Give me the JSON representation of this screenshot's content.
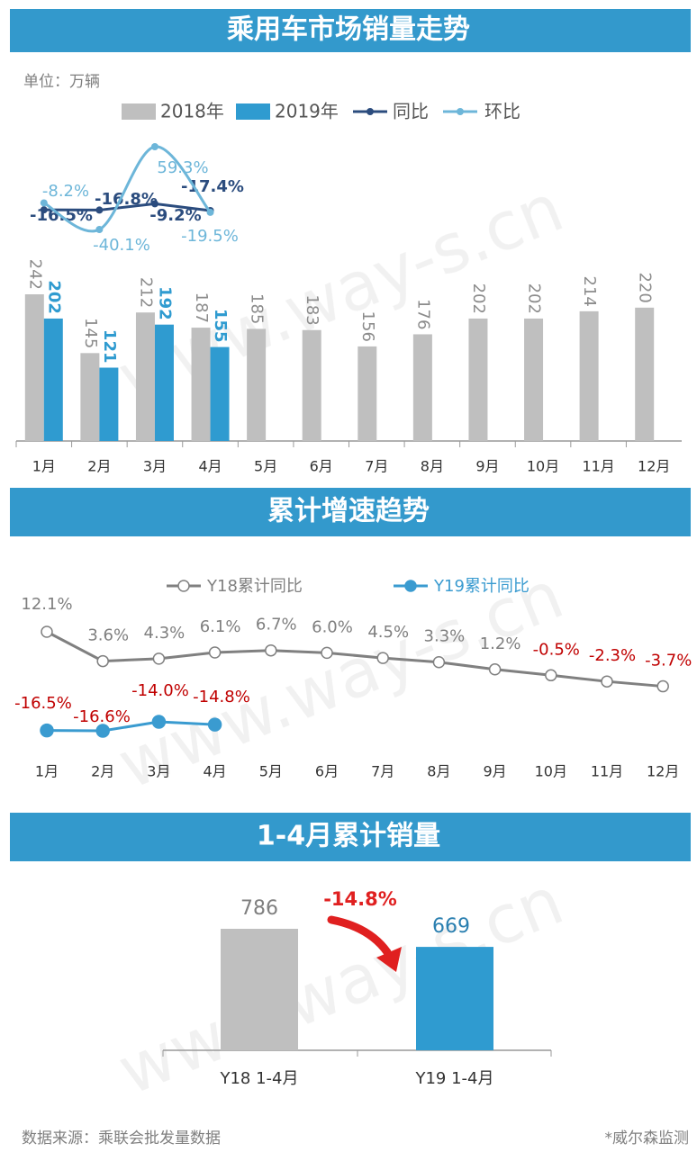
{
  "watermark": "www.way-s.cn",
  "source": "数据来源：乘联会批发量数据",
  "credit": "*威尔森监测",
  "chart_data": [
    {
      "type": "bar",
      "title": "乘用车市场销量走势",
      "unit_label": "单位：万辆",
      "categories": [
        "1月",
        "2月",
        "3月",
        "4月",
        "5月",
        "6月",
        "7月",
        "8月",
        "9月",
        "10月",
        "11月",
        "12月"
      ],
      "series": [
        {
          "name": "2018年",
          "type": "bar",
          "color": "#bfbfbf",
          "values": [
            242,
            145,
            212,
            187,
            185,
            183,
            156,
            176,
            202,
            202,
            214,
            220
          ]
        },
        {
          "name": "2019年",
          "type": "bar",
          "color": "#2f9bd0",
          "values": [
            202,
            121,
            192,
            155,
            null,
            null,
            null,
            null,
            null,
            null,
            null,
            null
          ]
        },
        {
          "name": "同比",
          "type": "line",
          "color": "#2b4c7e",
          "values": [
            -16.5,
            -16.8,
            -9.2,
            -17.4,
            null,
            null,
            null,
            null,
            null,
            null,
            null,
            null
          ],
          "value_labels": [
            "-16.5%",
            "-16.8%",
            "-9.2%",
            "-17.4%",
            null,
            null,
            null,
            null,
            null,
            null,
            null,
            null
          ]
        },
        {
          "name": "环比",
          "type": "line",
          "color": "#6db6d9",
          "smooth": true,
          "values": [
            -8.2,
            -40.1,
            59.3,
            -19.5,
            null,
            null,
            null,
            null,
            null,
            null,
            null,
            null
          ],
          "value_labels": [
            "-8.2%",
            "-40.1%",
            "59.3%",
            "-19.5%",
            null,
            null,
            null,
            null,
            null,
            null,
            null,
            null
          ]
        }
      ]
    },
    {
      "type": "line",
      "title": "累计增速趋势",
      "categories": [
        "1月",
        "2月",
        "3月",
        "4月",
        "5月",
        "6月",
        "7月",
        "8月",
        "9月",
        "10月",
        "11月",
        "12月"
      ],
      "positive_color": "#7f7f7f",
      "negative_color": "#c00000",
      "series": [
        {
          "name": "Y18累计同比",
          "color": "#808080",
          "marker": "open",
          "values": [
            12.1,
            3.6,
            4.3,
            6.1,
            6.7,
            6.0,
            4.5,
            3.3,
            1.2,
            -0.5,
            -2.3,
            -3.7
          ],
          "value_labels": [
            "12.1%",
            "3.6%",
            "4.3%",
            "6.1%",
            "6.7%",
            "6.0%",
            "4.5%",
            "3.3%",
            "1.2%",
            "-0.5%",
            "-2.3%",
            "-3.7%"
          ]
        },
        {
          "name": "Y19累计同比",
          "color": "#3a9bd0",
          "marker": "filled",
          "values": [
            -16.5,
            -16.6,
            -14.0,
            -14.8,
            null,
            null,
            null,
            null,
            null,
            null,
            null,
            null
          ],
          "value_labels": [
            "-16.5%",
            "-16.6%",
            "-14.0%",
            "-14.8%",
            null,
            null,
            null,
            null,
            null,
            null,
            null,
            null
          ]
        }
      ]
    },
    {
      "type": "bar",
      "title": "1-4月累计销量",
      "categories": [
        "Y18 1-4月",
        "Y19 1-4月"
      ],
      "values": [
        786,
        669
      ],
      "colors": [
        "#bfbfbf",
        "#2f9bd0"
      ],
      "annotation": "-14.8%"
    }
  ]
}
